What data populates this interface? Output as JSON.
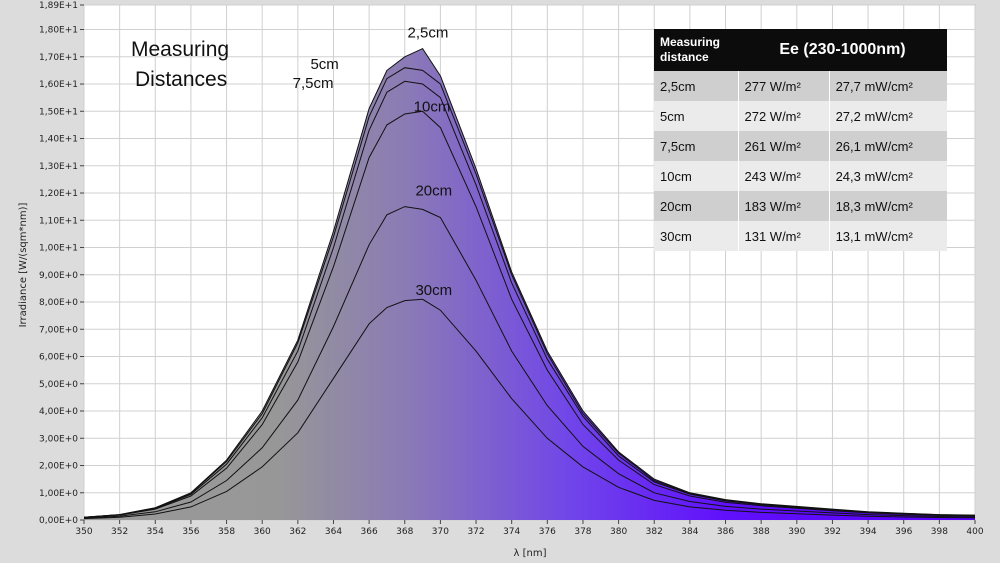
{
  "overlay": {
    "title_line1": "Measuring",
    "title_line2": "Distances"
  },
  "legend_table": {
    "header_dist": "Measuring distance",
    "header_ee": "Ee  (230-1000nm)",
    "rows": [
      {
        "dist": "2,5cm",
        "w": "277 W/m²",
        "mw": "27,7 mW/cm²"
      },
      {
        "dist": "5cm",
        "w": "272 W/m²",
        "mw": "27,2 mW/cm²"
      },
      {
        "dist": "7,5cm",
        "w": "261 W/m²",
        "mw": "26,1 mW/cm²"
      },
      {
        "dist": "10cm",
        "w": "243 W/m²",
        "mw": "24,3 mW/cm²"
      },
      {
        "dist": "20cm",
        "w": "183 W/m²",
        "mw": "18,3 mW/cm²"
      },
      {
        "dist": "30cm",
        "w": "131 W/m²",
        "mw": "13,1 mW/cm²"
      }
    ]
  },
  "colors": {
    "short_wavelength_fill": "#9a9a9a",
    "long_wavelength_fill": "#5a00ff",
    "curve_line": "#111111",
    "background": "#ffffff"
  },
  "chart_data": {
    "type": "area",
    "xlabel": "λ [nm]",
    "ylabel": "Irradiance [W/(sqm*nm)]",
    "xlim": [
      350,
      400
    ],
    "ylim": [
      0,
      18.9
    ],
    "x_ticks": [
      "350",
      "352",
      "354",
      "356",
      "358",
      "360",
      "362",
      "364",
      "366",
      "368",
      "370",
      "372",
      "374",
      "376",
      "378",
      "380",
      "382",
      "384",
      "386",
      "388",
      "390",
      "392",
      "394",
      "396",
      "398",
      "400"
    ],
    "y_ticks": [
      "0,00E+0",
      "1,00E+0",
      "2,00E+0",
      "3,00E+0",
      "4,00E+0",
      "5,00E+0",
      "6,00E+0",
      "7,00E+0",
      "8,00E+0",
      "9,00E+0",
      "1,00E+1",
      "1,10E+1",
      "1,20E+1",
      "1,30E+1",
      "1,40E+1",
      "1,50E+1",
      "1,60E+1",
      "1,70E+1",
      "1,80E+1",
      "1,89E+1"
    ],
    "y_tick_values": [
      0,
      1,
      2,
      3,
      4,
      5,
      6,
      7,
      8,
      9,
      10,
      11,
      12,
      13,
      14,
      15,
      16,
      17,
      18,
      18.9
    ],
    "grid": true,
    "x": [
      350,
      352,
      354,
      356,
      358,
      360,
      362,
      364,
      366,
      367,
      368,
      369,
      370,
      372,
      374,
      376,
      378,
      380,
      382,
      384,
      386,
      388,
      390,
      392,
      394,
      396,
      398,
      400
    ],
    "series": [
      {
        "name": "2,5cm",
        "values": [
          0.1,
          0.2,
          0.45,
          1.0,
          2.2,
          4.0,
          6.6,
          10.6,
          15.1,
          16.5,
          17.0,
          17.3,
          16.3,
          12.9,
          9.1,
          6.2,
          4.0,
          2.5,
          1.5,
          1.0,
          0.75,
          0.6,
          0.5,
          0.4,
          0.3,
          0.25,
          0.2,
          0.18
        ]
      },
      {
        "name": "5cm",
        "values": [
          0.1,
          0.2,
          0.44,
          0.98,
          2.15,
          3.9,
          6.5,
          10.4,
          14.8,
          16.2,
          16.6,
          16.5,
          16.0,
          12.7,
          9.0,
          6.1,
          3.9,
          2.45,
          1.45,
          0.98,
          0.72,
          0.58,
          0.48,
          0.38,
          0.29,
          0.24,
          0.19,
          0.17
        ]
      },
      {
        "name": "7,5cm",
        "values": [
          0.1,
          0.19,
          0.42,
          0.94,
          2.05,
          3.75,
          6.2,
          10.0,
          14.3,
          15.7,
          16.1,
          16.0,
          15.5,
          12.3,
          8.7,
          5.9,
          3.8,
          2.35,
          1.4,
          0.95,
          0.7,
          0.56,
          0.46,
          0.37,
          0.28,
          0.23,
          0.18,
          0.16
        ]
      },
      {
        "name": "10cm",
        "values": [
          0.09,
          0.18,
          0.4,
          0.88,
          1.9,
          3.5,
          5.8,
          9.3,
          13.3,
          14.5,
          14.9,
          15.0,
          14.4,
          11.5,
          8.1,
          5.5,
          3.5,
          2.2,
          1.3,
          0.88,
          0.65,
          0.52,
          0.43,
          0.34,
          0.26,
          0.21,
          0.17,
          0.15
        ]
      },
      {
        "name": "20cm",
        "values": [
          0.07,
          0.14,
          0.3,
          0.66,
          1.45,
          2.65,
          4.4,
          7.1,
          10.1,
          11.2,
          11.5,
          11.4,
          11.1,
          8.8,
          6.2,
          4.2,
          2.7,
          1.7,
          1.0,
          0.68,
          0.5,
          0.4,
          0.33,
          0.26,
          0.2,
          0.16,
          0.13,
          0.11
        ]
      },
      {
        "name": "30cm",
        "values": [
          0.05,
          0.1,
          0.22,
          0.48,
          1.05,
          1.95,
          3.2,
          5.2,
          7.2,
          7.8,
          8.05,
          8.1,
          7.7,
          6.2,
          4.45,
          3.0,
          1.95,
          1.2,
          0.72,
          0.48,
          0.36,
          0.28,
          0.23,
          0.18,
          0.14,
          0.11,
          0.09,
          0.08
        ]
      }
    ],
    "curve_labels": [
      {
        "series": "2,5cm",
        "x": 369.3,
        "y": 17.7,
        "anchor": "middle"
      },
      {
        "series": "5cm",
        "x": 364.3,
        "y": 16.55,
        "anchor": "end"
      },
      {
        "series": "7,5cm",
        "x": 364.0,
        "y": 15.85,
        "anchor": "end"
      },
      {
        "series": "10cm",
        "x": 368.5,
        "y": 15.0,
        "anchor": "start"
      },
      {
        "series": "20cm",
        "x": 368.6,
        "y": 11.9,
        "anchor": "start"
      },
      {
        "series": "30cm",
        "x": 368.6,
        "y": 8.25,
        "anchor": "start"
      }
    ]
  }
}
